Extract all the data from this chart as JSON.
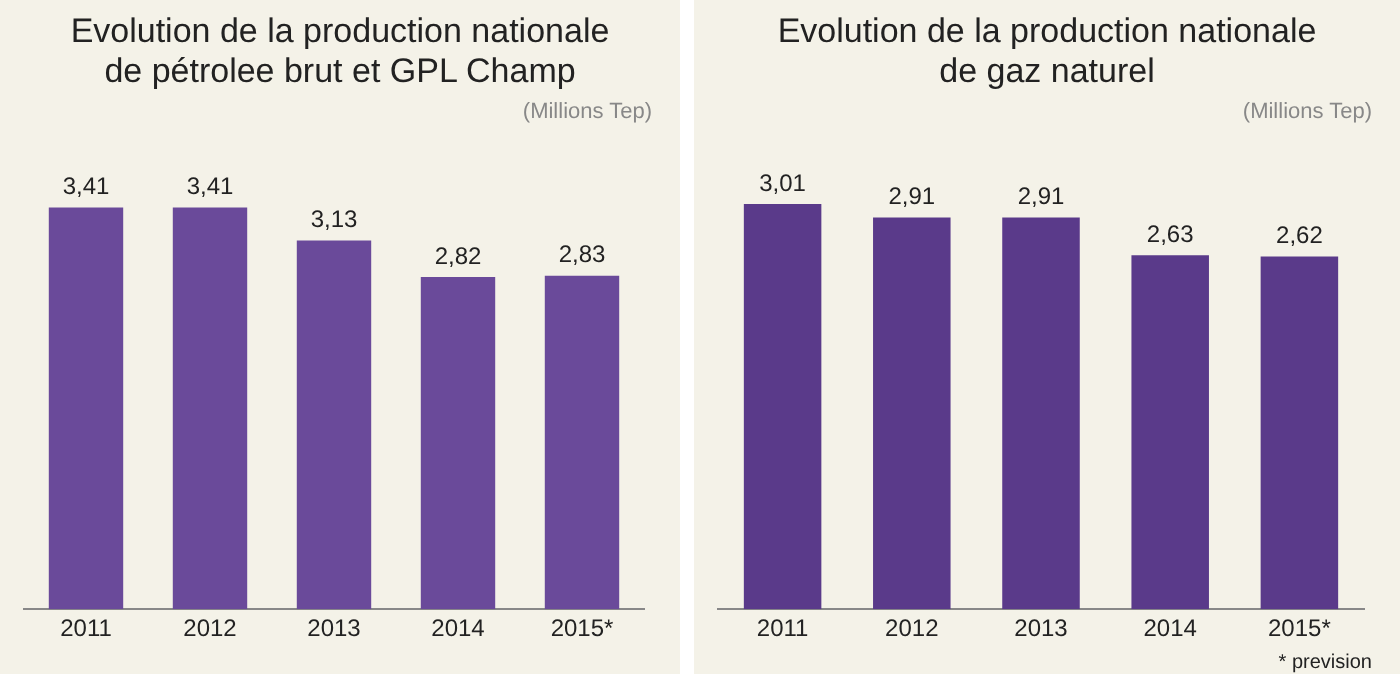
{
  "chart_data": [
    {
      "type": "bar",
      "title": "Evolution de la production nationale\nde pétrolee brut et GPL Champ",
      "annotations": [
        "(Millions Tep)"
      ],
      "categories": [
        "2011",
        "2012",
        "2013",
        "2014",
        "2015*"
      ],
      "values": [
        3.41,
        3.41,
        3.13,
        2.82,
        2.83
      ],
      "value_labels": [
        "3,41",
        "3,41",
        "3,13",
        "2,82",
        "2,83"
      ],
      "color": "#6a4a9a",
      "tick_labels": "x",
      "grid": false,
      "legend": false
    },
    {
      "type": "bar",
      "title": "Evolution de la production nationale\nde gaz naturel",
      "annotations": [
        "(Millions Tep)",
        "* prevision"
      ],
      "categories": [
        "2011",
        "2012",
        "2013",
        "2014",
        "2015*"
      ],
      "values": [
        3.01,
        2.91,
        2.91,
        2.63,
        2.62
      ],
      "value_labels": [
        "3,01",
        "2,91",
        "2,91",
        "2,63",
        "2,62"
      ],
      "color": "#5a3a8a",
      "tick_labels": "x",
      "grid": false,
      "legend": false
    }
  ]
}
